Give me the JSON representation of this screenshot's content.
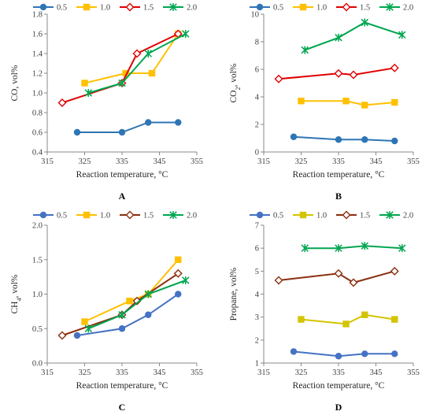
{
  "chart_data": [
    {
      "panel": "A",
      "type": "line",
      "ylabel_main": "CO",
      "ylabel_sub": "",
      "ylabel_rest": ", vol%",
      "xlabel": "Reaction temperature, °C",
      "xlim": [
        315,
        355
      ],
      "xticks": [
        315,
        325,
        335,
        345,
        355
      ],
      "ylim": [
        0.4,
        1.8
      ],
      "yticks": [
        "0.4",
        "0.6",
        "0.8",
        "1.0",
        "1.2",
        "1.4",
        "1.6",
        "1.8"
      ],
      "series": [
        {
          "name": "0.5",
          "color": "#2e75b6",
          "marker": "circle",
          "points": [
            [
              323,
              0.6
            ],
            [
              335,
              0.6
            ],
            [
              342,
              0.7
            ],
            [
              350,
              0.7
            ]
          ]
        },
        {
          "name": "1.0",
          "color": "#ffc000",
          "marker": "square",
          "points": [
            [
              325,
              1.1
            ],
            [
              336,
              1.2
            ],
            [
              343,
              1.2
            ],
            [
              350,
              1.6
            ]
          ]
        },
        {
          "name": "1.5",
          "color": "#e00000",
          "marker": "diamond",
          "points": [
            [
              319,
              0.9
            ],
            [
              335,
              1.1
            ],
            [
              339,
              1.4
            ],
            [
              350,
              1.6
            ]
          ]
        },
        {
          "name": "2.0",
          "color": "#00a650",
          "marker": "star",
          "points": [
            [
              326,
              1.0
            ],
            [
              335,
              1.1
            ],
            [
              342,
              1.4
            ],
            [
              352,
              1.6
            ]
          ]
        }
      ]
    },
    {
      "panel": "B",
      "type": "line",
      "ylabel_main": "CO",
      "ylabel_sub": "2",
      "ylabel_rest": ", vol%",
      "xlabel": "Reaction temperature, °C",
      "xlim": [
        315,
        355
      ],
      "xticks": [
        315,
        325,
        335,
        345,
        355
      ],
      "ylim": [
        0,
        10
      ],
      "yticks": [
        "0",
        "2",
        "4",
        "6",
        "8",
        "10"
      ],
      "series": [
        {
          "name": "0.5",
          "color": "#2e75b6",
          "marker": "circle",
          "points": [
            [
              323,
              1.1
            ],
            [
              335,
              0.9
            ],
            [
              342,
              0.9
            ],
            [
              350,
              0.8
            ]
          ]
        },
        {
          "name": "1.0",
          "color": "#ffc000",
          "marker": "square",
          "points": [
            [
              325,
              3.7
            ],
            [
              337,
              3.7
            ],
            [
              342,
              3.4
            ],
            [
              350,
              3.6
            ]
          ]
        },
        {
          "name": "1.5",
          "color": "#e00000",
          "marker": "diamond",
          "points": [
            [
              319,
              5.3
            ],
            [
              335,
              5.7
            ],
            [
              339,
              5.6
            ],
            [
              350,
              6.1
            ]
          ]
        },
        {
          "name": "2.0",
          "color": "#00a650",
          "marker": "star",
          "points": [
            [
              326,
              7.4
            ],
            [
              335,
              8.3
            ],
            [
              342,
              9.4
            ],
            [
              352,
              8.5
            ]
          ]
        }
      ]
    },
    {
      "panel": "C",
      "type": "line",
      "ylabel_main": "CH",
      "ylabel_sub": "4",
      "ylabel_rest": ", vol%",
      "xlabel": "Reaction temperature, °C",
      "xlim": [
        315,
        355
      ],
      "xticks": [
        315,
        325,
        335,
        345,
        355
      ],
      "ylim": [
        0,
        2
      ],
      "yticks": [
        "0.0",
        "0.5",
        "1.0",
        "1.5",
        "2.0"
      ],
      "series": [
        {
          "name": "0.5",
          "color": "#4472c4",
          "marker": "circle",
          "points": [
            [
              323,
              0.4
            ],
            [
              335,
              0.5
            ],
            [
              342,
              0.7
            ],
            [
              350,
              1.0
            ]
          ]
        },
        {
          "name": "1.0",
          "color": "#ffc000",
          "marker": "square",
          "points": [
            [
              325,
              0.6
            ],
            [
              337,
              0.9
            ],
            [
              342,
              1.0
            ],
            [
              350,
              1.5
            ]
          ]
        },
        {
          "name": "1.5",
          "color": "#8b2e0e",
          "marker": "diamond",
          "points": [
            [
              319,
              0.4
            ],
            [
              335,
              0.7
            ],
            [
              339,
              0.9
            ],
            [
              350,
              1.3
            ]
          ]
        },
        {
          "name": "2.0",
          "color": "#00a650",
          "marker": "star",
          "points": [
            [
              326,
              0.5
            ],
            [
              335,
              0.7
            ],
            [
              342,
              1.0
            ],
            [
              352,
              1.2
            ]
          ]
        }
      ]
    },
    {
      "panel": "D",
      "type": "line",
      "ylabel_main": "Propane, vol%",
      "ylabel_sub": "",
      "ylabel_rest": "",
      "xlabel": "Reaction temperature, °C",
      "xlim": [
        315,
        355
      ],
      "xticks": [
        315,
        325,
        335,
        345,
        355
      ],
      "ylim": [
        1,
        7
      ],
      "yticks": [
        "1",
        "2",
        "3",
        "4",
        "5",
        "6",
        "7"
      ],
      "series": [
        {
          "name": "0.5",
          "color": "#4472c4",
          "marker": "circle",
          "points": [
            [
              323,
              1.5
            ],
            [
              335,
              1.3
            ],
            [
              342,
              1.4
            ],
            [
              350,
              1.4
            ]
          ]
        },
        {
          "name": "1.0",
          "color": "#d4c400",
          "marker": "square",
          "points": [
            [
              325,
              2.9
            ],
            [
              337,
              2.7
            ],
            [
              342,
              3.1
            ],
            [
              350,
              2.9
            ]
          ]
        },
        {
          "name": "1.5",
          "color": "#8b2e0e",
          "marker": "diamond",
          "points": [
            [
              319,
              4.6
            ],
            [
              335,
              4.9
            ],
            [
              339,
              4.5
            ],
            [
              350,
              5.0
            ]
          ]
        },
        {
          "name": "2.0",
          "color": "#00a650",
          "marker": "star",
          "points": [
            [
              326,
              6.0
            ],
            [
              335,
              6.0
            ],
            [
              342,
              6.1
            ],
            [
              352,
              6.0
            ]
          ]
        }
      ]
    }
  ]
}
